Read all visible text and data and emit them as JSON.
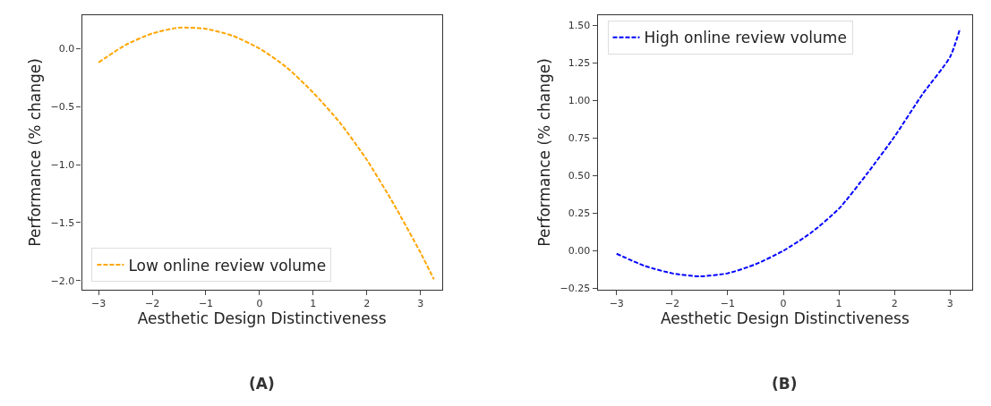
{
  "chart_data": [
    {
      "type": "line",
      "xlabel": "Aesthetic Design Distinctiveness",
      "ylabel": "Performance (% change)",
      "annotations": [
        "(A)"
      ],
      "x": [
        -3,
        -2.5,
        -2,
        -1.5,
        -1,
        -0.5,
        0,
        0.5,
        1,
        1.5,
        2,
        2.5,
        3,
        3.25
      ],
      "series": [
        {
          "name": "Low online review volume",
          "color": "#ffa500",
          "values": [
            -0.12,
            0.03,
            0.13,
            0.18,
            0.17,
            0.11,
            0.0,
            -0.16,
            -0.38,
            -0.64,
            -0.96,
            -1.34,
            -1.76,
            -1.99
          ]
        }
      ],
      "xlim": [
        -3.31,
        3.4
      ],
      "ylim": [
        -2.08,
        0.29
      ],
      "xticks": [
        -3,
        -2,
        -1,
        0,
        1,
        2,
        3
      ],
      "yticks": [
        {
          "value": 0,
          "label": "0.0"
        },
        -0.5,
        {
          "value": -1,
          "label": "−1.0"
        },
        -1.5,
        {
          "value": -2,
          "label": "−2.0"
        }
      ],
      "legend": "bottom left",
      "line_style": "dashed",
      "marker": "none"
    },
    {
      "type": "line",
      "xlabel": "Aesthetic Design Distinctiveness",
      "ylabel": "Performance (% change)",
      "annotations": [
        "(B)"
      ],
      "x": [
        -3,
        -2.5,
        -2,
        -1.5,
        -1,
        -0.5,
        0,
        0.5,
        1,
        1.5,
        2,
        2.5,
        3,
        3.18
      ],
      "series": [
        {
          "name": "High online review volume",
          "color": "#0000ff",
          "values": [
            -0.02,
            -0.1,
            -0.15,
            -0.17,
            -0.15,
            -0.09,
            0.0,
            0.12,
            0.28,
            0.51,
            0.76,
            1.04,
            1.29,
            1.48
          ]
        }
      ],
      "xlim": [
        -3.34,
        3.4
      ],
      "ylim": [
        -0.26,
        1.57
      ],
      "xticks": [
        -3,
        -2,
        -1,
        0,
        1,
        2,
        3
      ],
      "yticks": [
        {
          "value": -0.25,
          "label": "−0.25"
        },
        {
          "value": 0,
          "label": "0.00"
        },
        0.25,
        {
          "value": 0.5,
          "label": "0.50"
        },
        0.75,
        {
          "value": 1,
          "label": "1.00"
        },
        1.25,
        {
          "value": 1.5,
          "label": "1.50"
        }
      ],
      "legend": "top left",
      "line_style": "dashed",
      "marker": "none"
    }
  ]
}
